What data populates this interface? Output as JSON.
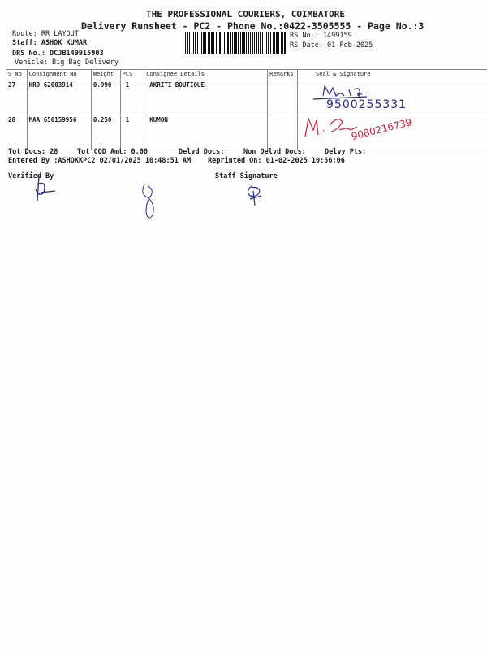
{
  "header": {
    "company": "THE PROFESSIONAL COURIERS, COIMBATORE",
    "subtitle": "Delivery Runsheet - PC2 - Phone No.:0422-3505555 - Page No.:3",
    "route": "Route: RR  LAYOUT",
    "staff": "Staff: ASHOK KUMAR",
    "drs_no": "DRS No.: DCJB149915903",
    "vehicle": "Vehicle: Big Bag Delivery",
    "rs_no": "RS No.: 1499159",
    "rs_date": "RS Date: 01-Feb-2025"
  },
  "table": {
    "columns": [
      "S No",
      "Consignment No",
      "Weight",
      "PCS",
      "Consignee Details",
      "Remarks",
      "Seal & Signature"
    ],
    "rows": [
      {
        "sno": "27",
        "consignment": "HRD 62003914",
        "weight": "0.990",
        "pcs": "1",
        "consignee": "AKRITI BOUTIQUE",
        "remarks": "",
        "signature_phone": "9500255331"
      },
      {
        "sno": "28",
        "consignment": "MAA 650159956",
        "weight": "0.250",
        "pcs": "1",
        "consignee": "KUMON",
        "remarks": "",
        "signature_phone": "9080216739"
      }
    ]
  },
  "footer": {
    "tot_docs": "Tot Docs:  28",
    "tot_cod": "Tot COD Amt:    0.00",
    "delvd_docs": "Delvd Docs:",
    "non_delvd": "Non Delvd Docs:",
    "delvy_pts": "Delvy Pts:",
    "entered_by": "Entered By :ASHOKKPC2 02/01/2025 10:48:51 AM",
    "reprinted": "Reprinted On: 01-02-2025 10:56:06",
    "verified_by": "Verified By",
    "staff_signature": "Staff Signature"
  },
  "colors": {
    "ink_blue": "#2a2a8c",
    "ink_red": "#d0203a"
  }
}
